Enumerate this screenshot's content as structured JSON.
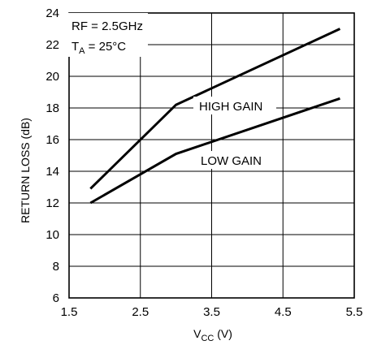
{
  "chart_data": {
    "type": "line",
    "title": "",
    "xlabel_main": "V",
    "xlabel_sub": "CC",
    "xlabel_unit": " (V)",
    "ylabel": "RETURN LOSS (dB)",
    "xlim": [
      1.5,
      5.5
    ],
    "ylim": [
      6,
      24
    ],
    "x_ticks": [
      1.5,
      2.5,
      3.5,
      4.5,
      5.5
    ],
    "y_ticks": [
      6,
      8,
      10,
      12,
      14,
      16,
      18,
      20,
      22,
      24
    ],
    "x_tick_labels": [
      "1.5",
      "2.5",
      "3.5",
      "4.5",
      "5.5"
    ],
    "y_tick_labels": [
      "6",
      "8",
      "10",
      "12",
      "14",
      "16",
      "18",
      "20",
      "22",
      "24"
    ],
    "grid": true,
    "annotations": {
      "line1": "RF = 2.5GHz",
      "line2_main": "T",
      "line2_sub": "A",
      "line2_rest": " = 25°C"
    },
    "series": [
      {
        "name": "HIGH GAIN",
        "x": [
          1.8,
          3.0,
          5.3
        ],
        "y": [
          12.9,
          18.2,
          23.0
        ]
      },
      {
        "name": "LOW GAIN",
        "x": [
          1.8,
          3.0,
          5.3
        ],
        "y": [
          12.0,
          15.1,
          18.6
        ]
      }
    ]
  }
}
